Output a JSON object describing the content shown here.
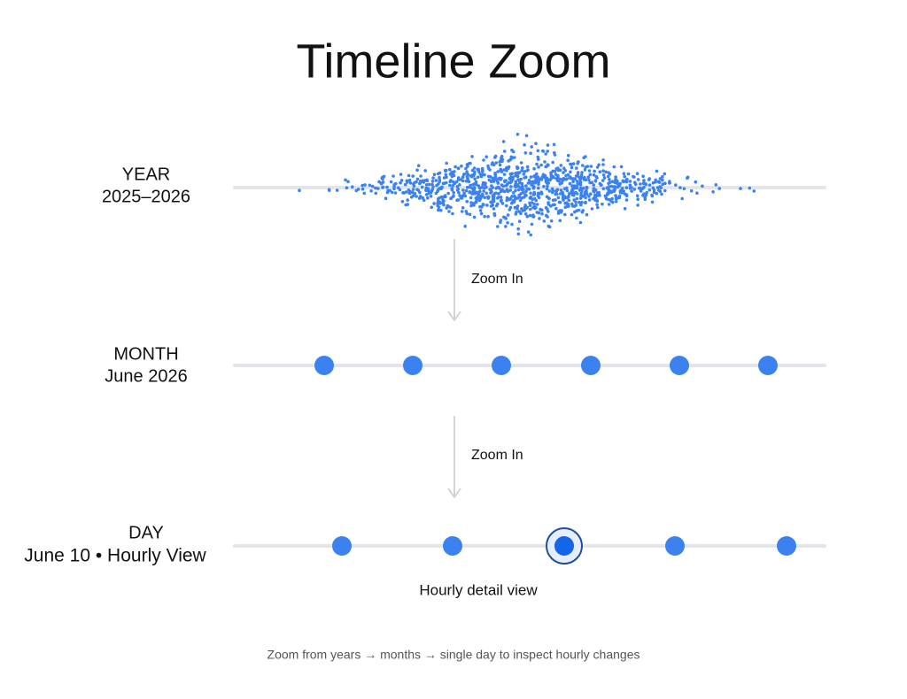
{
  "title": "Timeline Zoom",
  "levels": [
    {
      "name": "YEAR",
      "label": "2025–2026"
    },
    {
      "name": "MONTH",
      "label": "June 2026"
    },
    {
      "name": "DAY",
      "label": "June 10 • Hourly View"
    }
  ],
  "transitions": [
    {
      "label": "Zoom In"
    },
    {
      "label": "Zoom In"
    }
  ],
  "annotation": "Hourly detail view",
  "footer": "Zoom from years → months → single day to inspect hourly changes"
}
